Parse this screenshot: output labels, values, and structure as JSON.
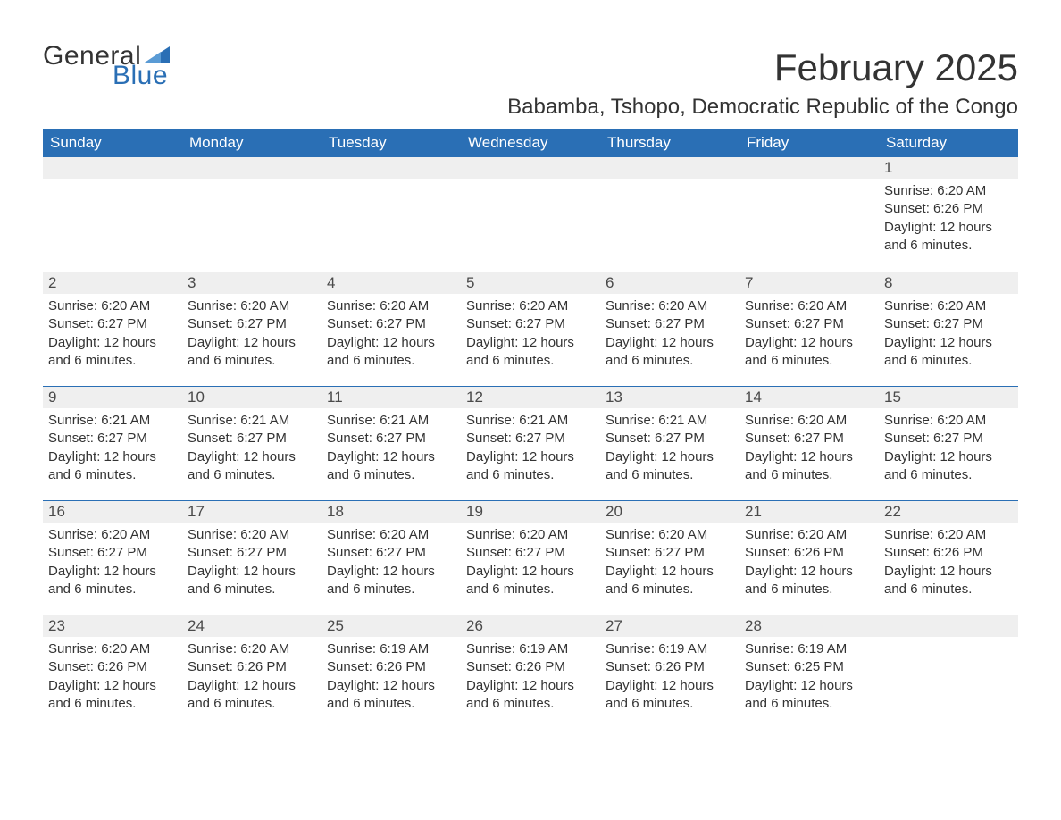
{
  "brand": {
    "word1": "General",
    "word2": "Blue",
    "tri_color": "#2a6fb5"
  },
  "title": "February 2025",
  "subtitle": "Babamba, Tshopo, Democratic Republic of the Congo",
  "colors": {
    "header_bg": "#2a6fb5",
    "header_text": "#ffffff",
    "daynum_bg": "#efefef",
    "rule": "#2a6fb5",
    "body_text": "#333333"
  },
  "fonts": {
    "title_size_pt": 32,
    "subtitle_size_pt": 18,
    "dow_size_pt": 13,
    "detail_size_pt": 11
  },
  "days_of_week": [
    "Sunday",
    "Monday",
    "Tuesday",
    "Wednesday",
    "Thursday",
    "Friday",
    "Saturday"
  ],
  "labels": {
    "sunrise": "Sunrise:",
    "sunset": "Sunset:",
    "daylight": "Daylight:"
  },
  "weeks": [
    [
      {
        "day": "",
        "sunrise": "",
        "sunset": "",
        "daylight": ""
      },
      {
        "day": "",
        "sunrise": "",
        "sunset": "",
        "daylight": ""
      },
      {
        "day": "",
        "sunrise": "",
        "sunset": "",
        "daylight": ""
      },
      {
        "day": "",
        "sunrise": "",
        "sunset": "",
        "daylight": ""
      },
      {
        "day": "",
        "sunrise": "",
        "sunset": "",
        "daylight": ""
      },
      {
        "day": "",
        "sunrise": "",
        "sunset": "",
        "daylight": ""
      },
      {
        "day": "1",
        "sunrise": "6:20 AM",
        "sunset": "6:26 PM",
        "daylight": "12 hours and 6 minutes."
      }
    ],
    [
      {
        "day": "2",
        "sunrise": "6:20 AM",
        "sunset": "6:27 PM",
        "daylight": "12 hours and 6 minutes."
      },
      {
        "day": "3",
        "sunrise": "6:20 AM",
        "sunset": "6:27 PM",
        "daylight": "12 hours and 6 minutes."
      },
      {
        "day": "4",
        "sunrise": "6:20 AM",
        "sunset": "6:27 PM",
        "daylight": "12 hours and 6 minutes."
      },
      {
        "day": "5",
        "sunrise": "6:20 AM",
        "sunset": "6:27 PM",
        "daylight": "12 hours and 6 minutes."
      },
      {
        "day": "6",
        "sunrise": "6:20 AM",
        "sunset": "6:27 PM",
        "daylight": "12 hours and 6 minutes."
      },
      {
        "day": "7",
        "sunrise": "6:20 AM",
        "sunset": "6:27 PM",
        "daylight": "12 hours and 6 minutes."
      },
      {
        "day": "8",
        "sunrise": "6:20 AM",
        "sunset": "6:27 PM",
        "daylight": "12 hours and 6 minutes."
      }
    ],
    [
      {
        "day": "9",
        "sunrise": "6:21 AM",
        "sunset": "6:27 PM",
        "daylight": "12 hours and 6 minutes."
      },
      {
        "day": "10",
        "sunrise": "6:21 AM",
        "sunset": "6:27 PM",
        "daylight": "12 hours and 6 minutes."
      },
      {
        "day": "11",
        "sunrise": "6:21 AM",
        "sunset": "6:27 PM",
        "daylight": "12 hours and 6 minutes."
      },
      {
        "day": "12",
        "sunrise": "6:21 AM",
        "sunset": "6:27 PM",
        "daylight": "12 hours and 6 minutes."
      },
      {
        "day": "13",
        "sunrise": "6:21 AM",
        "sunset": "6:27 PM",
        "daylight": "12 hours and 6 minutes."
      },
      {
        "day": "14",
        "sunrise": "6:20 AM",
        "sunset": "6:27 PM",
        "daylight": "12 hours and 6 minutes."
      },
      {
        "day": "15",
        "sunrise": "6:20 AM",
        "sunset": "6:27 PM",
        "daylight": "12 hours and 6 minutes."
      }
    ],
    [
      {
        "day": "16",
        "sunrise": "6:20 AM",
        "sunset": "6:27 PM",
        "daylight": "12 hours and 6 minutes."
      },
      {
        "day": "17",
        "sunrise": "6:20 AM",
        "sunset": "6:27 PM",
        "daylight": "12 hours and 6 minutes."
      },
      {
        "day": "18",
        "sunrise": "6:20 AM",
        "sunset": "6:27 PM",
        "daylight": "12 hours and 6 minutes."
      },
      {
        "day": "19",
        "sunrise": "6:20 AM",
        "sunset": "6:27 PM",
        "daylight": "12 hours and 6 minutes."
      },
      {
        "day": "20",
        "sunrise": "6:20 AM",
        "sunset": "6:27 PM",
        "daylight": "12 hours and 6 minutes."
      },
      {
        "day": "21",
        "sunrise": "6:20 AM",
        "sunset": "6:26 PM",
        "daylight": "12 hours and 6 minutes."
      },
      {
        "day": "22",
        "sunrise": "6:20 AM",
        "sunset": "6:26 PM",
        "daylight": "12 hours and 6 minutes."
      }
    ],
    [
      {
        "day": "23",
        "sunrise": "6:20 AM",
        "sunset": "6:26 PM",
        "daylight": "12 hours and 6 minutes."
      },
      {
        "day": "24",
        "sunrise": "6:20 AM",
        "sunset": "6:26 PM",
        "daylight": "12 hours and 6 minutes."
      },
      {
        "day": "25",
        "sunrise": "6:19 AM",
        "sunset": "6:26 PM",
        "daylight": "12 hours and 6 minutes."
      },
      {
        "day": "26",
        "sunrise": "6:19 AM",
        "sunset": "6:26 PM",
        "daylight": "12 hours and 6 minutes."
      },
      {
        "day": "27",
        "sunrise": "6:19 AM",
        "sunset": "6:26 PM",
        "daylight": "12 hours and 6 minutes."
      },
      {
        "day": "28",
        "sunrise": "6:19 AM",
        "sunset": "6:25 PM",
        "daylight": "12 hours and 6 minutes."
      },
      {
        "day": "",
        "sunrise": "",
        "sunset": "",
        "daylight": ""
      }
    ]
  ]
}
